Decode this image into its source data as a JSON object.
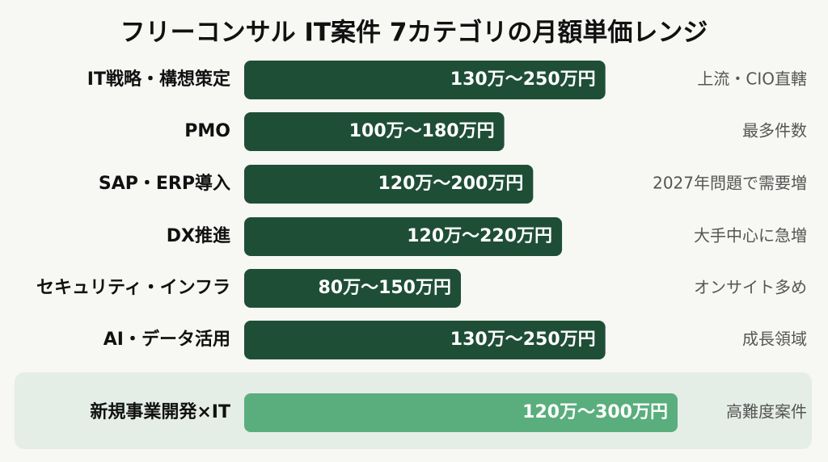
{
  "chart_data": {
    "type": "bar",
    "title": "フリーコンサル IT案件 7カテゴリの月額単価レンジ",
    "categories": [
      "IT戦略・構想策定",
      "PMO",
      "SAP・ERP導入",
      "DX推進",
      "セキュリティ・インフラ",
      "AI・データ活用",
      "新規事業開発×IT"
    ],
    "values": [
      250,
      180,
      200,
      220,
      150,
      250,
      300
    ],
    "value_labels": [
      "130万〜250万円",
      "100万〜180万円",
      "120万〜200万円",
      "120万〜220万円",
      "80万〜150万円",
      "130万〜250万円",
      "120万〜300万円"
    ],
    "notes": [
      "上流・CIO直轄",
      "最多件数",
      "2027年問題で需要増",
      "大手中心に急増",
      "オンサイト多め",
      "成長領域",
      "高難度案件"
    ],
    "colors": [
      "#1f4e37",
      "#1f4e37",
      "#1f4e37",
      "#1f4e37",
      "#1f4e37",
      "#1f4e37",
      "#5aae7d"
    ]
  }
}
